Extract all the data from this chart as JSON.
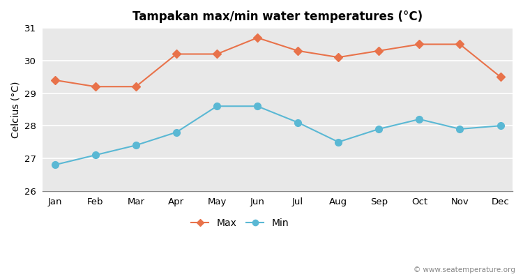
{
  "months": [
    "Jan",
    "Feb",
    "Mar",
    "Apr",
    "May",
    "Jun",
    "Jul",
    "Aug",
    "Sep",
    "Oct",
    "Nov",
    "Dec"
  ],
  "max_temps": [
    29.4,
    29.2,
    29.2,
    30.2,
    30.2,
    30.7,
    30.3,
    30.1,
    30.3,
    30.5,
    30.5,
    29.5
  ],
  "min_temps": [
    26.8,
    27.1,
    27.4,
    27.8,
    28.6,
    28.6,
    28.1,
    27.5,
    27.9,
    28.2,
    27.9,
    28.0
  ],
  "max_color": "#e8724a",
  "min_color": "#5ab8d4",
  "fig_bg_color": "#ffffff",
  "plot_bg_color": "#e8e8e8",
  "grid_color": "#ffffff",
  "title": "Tampakan max/min water temperatures (°C)",
  "ylabel": "Celcius (°C)",
  "ylim": [
    26,
    31
  ],
  "yticks": [
    26,
    27,
    28,
    29,
    30,
    31
  ],
  "watermark": "© www.seatemperature.org",
  "legend_max": "Max",
  "legend_min": "Min"
}
